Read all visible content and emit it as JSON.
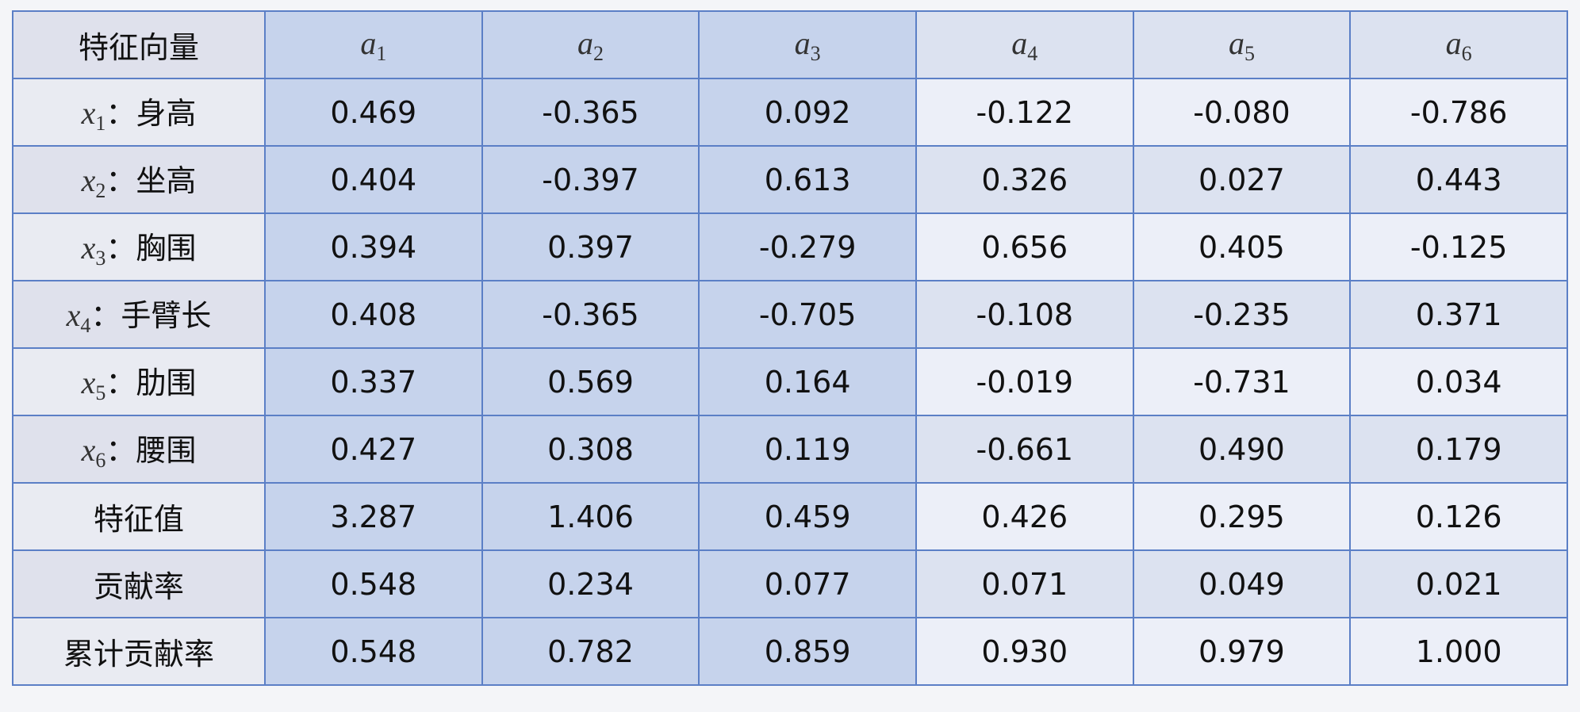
{
  "table": {
    "header": [
      "特征向量",
      {
        "var": "a",
        "sub": "1"
      },
      {
        "var": "a",
        "sub": "2"
      },
      {
        "var": "a",
        "sub": "3"
      },
      {
        "var": "a",
        "sub": "4"
      },
      {
        "var": "a",
        "sub": "5"
      },
      {
        "var": "a",
        "sub": "6"
      }
    ],
    "rows": [
      [
        {
          "var": "x",
          "sub": "1",
          "text": "：身高"
        },
        "0.469",
        "-0.365",
        "0.092",
        "-0.122",
        "-0.080",
        "-0.786"
      ],
      [
        {
          "var": "x",
          "sub": "2",
          "text": "：坐高"
        },
        "0.404",
        "-0.397",
        "0.613",
        "0.326",
        "0.027",
        "0.443"
      ],
      [
        {
          "var": "x",
          "sub": "3",
          "text": "：胸围"
        },
        "0.394",
        "0.397",
        "-0.279",
        "0.656",
        "0.405",
        "-0.125"
      ],
      [
        {
          "var": "x",
          "sub": "4",
          "text": "：手臂长"
        },
        "0.408",
        "-0.365",
        "-0.705",
        "-0.108",
        "-0.235",
        "0.371"
      ],
      [
        {
          "var": "x",
          "sub": "5",
          "text": "：肋围"
        },
        "0.337",
        "0.569",
        "0.164",
        "-0.019",
        "-0.731",
        "0.034"
      ],
      [
        {
          "var": "x",
          "sub": "6",
          "text": "：腰围"
        },
        "0.427",
        "0.308",
        "0.119",
        "-0.661",
        "0.490",
        "0.179"
      ],
      [
        "特征值",
        "3.287",
        "1.406",
        "0.459",
        "0.426",
        "0.295",
        "0.126"
      ],
      [
        "贡献率",
        "0.548",
        "0.234",
        "0.077",
        "0.071",
        "0.049",
        "0.021"
      ],
      [
        "累计贡献率",
        "0.548",
        "0.782",
        "0.859",
        "0.930",
        "0.979",
        "1.000"
      ]
    ]
  }
}
